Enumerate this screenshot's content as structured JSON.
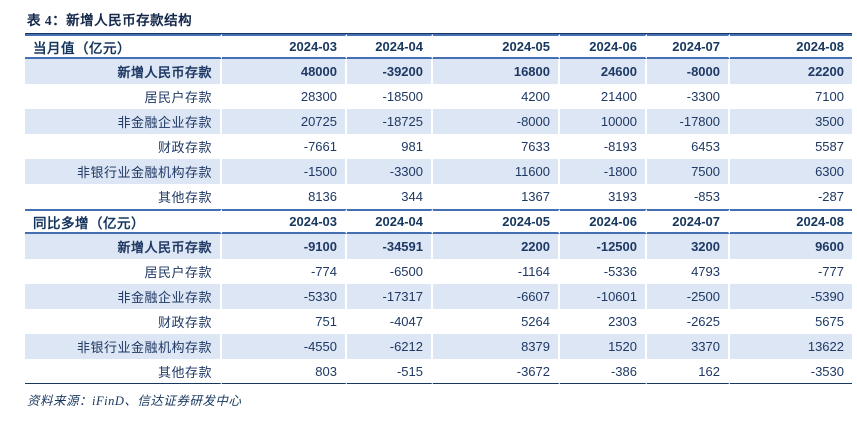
{
  "title": "表 4：新增人民币存款结构",
  "source": "资料来源：iFinD、信达证券研发中心",
  "colors": {
    "text_navy": "#1f3864",
    "header_navy": "#17375e",
    "row_shade": "#dce6f4",
    "border_blue": "#4470b3",
    "border_dark": "#17375e",
    "background": "#ffffff"
  },
  "chart_data": {
    "type": "table",
    "title": "表 4：新增人民币存款结构",
    "columns": [
      "2024-03",
      "2024-04",
      "2024-05",
      "2024-06",
      "2024-07",
      "2024-08"
    ],
    "sections": [
      {
        "header": "当月值（亿元）",
        "rows": [
          {
            "label": "新增人民币存款",
            "bold": true,
            "indent": false,
            "values": [
              48000,
              -39200,
              16800,
              24600,
              -8000,
              22200
            ]
          },
          {
            "label": "居民户存款",
            "bold": false,
            "indent": true,
            "values": [
              28300,
              -18500,
              4200,
              21400,
              -3300,
              7100
            ]
          },
          {
            "label": "非金融企业存款",
            "bold": false,
            "indent": true,
            "values": [
              20725,
              -18725,
              -8000,
              10000,
              -17800,
              3500
            ]
          },
          {
            "label": "财政存款",
            "bold": false,
            "indent": true,
            "values": [
              -7661,
              981,
              7633,
              -8193,
              6453,
              5587
            ]
          },
          {
            "label": "非银行业金融机构存款",
            "bold": false,
            "indent": true,
            "values": [
              -1500,
              -3300,
              11600,
              -1800,
              7500,
              6300
            ]
          },
          {
            "label": "其他存款",
            "bold": false,
            "indent": true,
            "values": [
              8136,
              344,
              1367,
              3193,
              -853,
              -287
            ]
          }
        ]
      },
      {
        "header": "同比多增（亿元）",
        "rows": [
          {
            "label": "新增人民币存款",
            "bold": true,
            "indent": false,
            "values": [
              -9100,
              -34591,
              2200,
              -12500,
              3200,
              9600
            ]
          },
          {
            "label": "居民户存款",
            "bold": false,
            "indent": true,
            "values": [
              -774,
              -6500,
              -1164,
              -5336,
              4793,
              -777
            ]
          },
          {
            "label": "非金融企业存款",
            "bold": false,
            "indent": true,
            "values": [
              -5330,
              -17317,
              -6607,
              -10601,
              -2500,
              -5390
            ]
          },
          {
            "label": "财政存款",
            "bold": false,
            "indent": true,
            "values": [
              751,
              -4047,
              5264,
              2303,
              -2625,
              5675
            ]
          },
          {
            "label": "非银行业金融机构存款",
            "bold": false,
            "indent": true,
            "values": [
              -4550,
              -6212,
              8379,
              1520,
              3370,
              13622
            ]
          },
          {
            "label": "其他存款",
            "bold": false,
            "indent": true,
            "values": [
              803,
              -515,
              -3672,
              -386,
              162,
              -3530
            ]
          }
        ]
      }
    ]
  }
}
